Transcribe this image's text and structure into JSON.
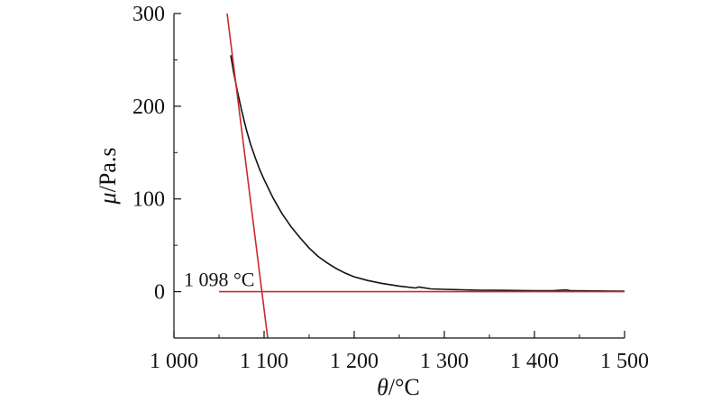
{
  "chart_data": {
    "type": "line",
    "xlabel_symbol": "θ",
    "xlabel_unit": "/°C",
    "ylabel_symbol": "μ",
    "ylabel_unit": "/Pa.s",
    "xlim": [
      1000,
      1500
    ],
    "ylim": [
      -50,
      300
    ],
    "x_ticks": [
      1000,
      1100,
      1200,
      1300,
      1400,
      1500
    ],
    "x_tick_labels": [
      "1 000",
      "1 100",
      "1 200",
      "1 300",
      "1 400",
      "1 500"
    ],
    "y_ticks": [
      0,
      100,
      200,
      300
    ],
    "y_tick_labels": [
      "0",
      "100",
      "200",
      "300"
    ],
    "grid": false,
    "series": [
      {
        "color": "#111111",
        "x": [
          1063,
          1066,
          1070,
          1075,
          1080,
          1085,
          1090,
          1095,
          1100,
          1110,
          1120,
          1130,
          1140,
          1150,
          1160,
          1170,
          1180,
          1190,
          1200,
          1215,
          1230,
          1250,
          1268,
          1272,
          1285,
          1300,
          1320,
          1340,
          1360,
          1380,
          1400,
          1420,
          1435,
          1440,
          1460,
          1480,
          1500
        ],
        "y": [
          255,
          238,
          218,
          196,
          176,
          159,
          145,
          132,
          121,
          101,
          84,
          70,
          58,
          47,
          38,
          31,
          25,
          20,
          16,
          12,
          9,
          6,
          4,
          5,
          3,
          2.5,
          2,
          1.5,
          1.4,
          1.2,
          1,
          0.9,
          1.8,
          1,
          0.8,
          0.7,
          0.6
        ]
      }
    ],
    "tangent_lines": [
      {
        "color": "#cc2a2a",
        "x": [
          1059,
          1104
        ],
        "y": [
          300,
          -50
        ]
      },
      {
        "color": "#cc2a2a",
        "x": [
          1050,
          1500
        ],
        "y": [
          0,
          0
        ]
      }
    ],
    "annotations": [
      {
        "text": "1 098 °C",
        "x": 1011,
        "y": 6
      }
    ]
  }
}
